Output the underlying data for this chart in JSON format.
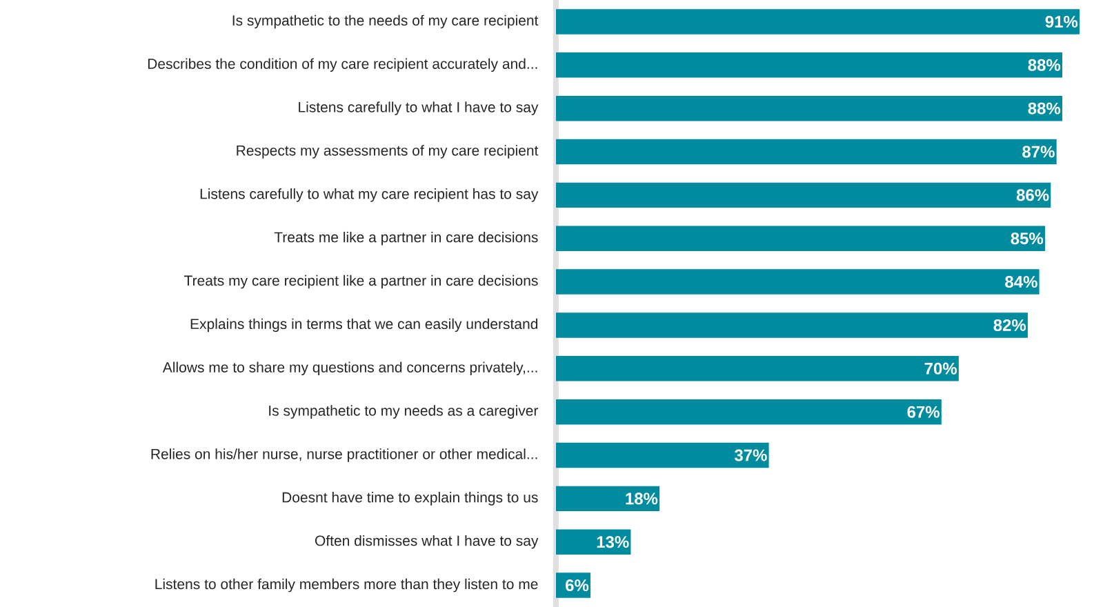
{
  "chart_data": {
    "type": "bar",
    "orientation": "horizontal",
    "color": "#008b9f",
    "categories": [
      "Is sympathetic to the needs of my care recipient",
      "Describes the condition of my care recipient accurately and...",
      "Listens carefully to what I have to say",
      "Respects my assessments of my care recipient",
      "Listens carefully to what my care recipient has to say",
      "Treats me like a partner in care decisions",
      "Treats my care recipient like a partner in care decisions",
      "Explains things in terms that we can easily understand",
      "Allows me to share my questions and concerns privately,...",
      "Is sympathetic to my needs as a caregiver",
      "Relies on his/her nurse, nurse practitioner or other medical...",
      "Doesnt have time to explain things to us",
      "Often dismisses what I have to say",
      "Listens to other family members more than they listen to me"
    ],
    "values": [
      91,
      88,
      88,
      87,
      86,
      85,
      84,
      82,
      70,
      67,
      37,
      18,
      13,
      6
    ],
    "value_labels": [
      "91%",
      "88%",
      "88%",
      "87%",
      "86%",
      "85%",
      "84%",
      "82%",
      "70%",
      "67%",
      "37%",
      "18%",
      "13%",
      "6%"
    ]
  }
}
